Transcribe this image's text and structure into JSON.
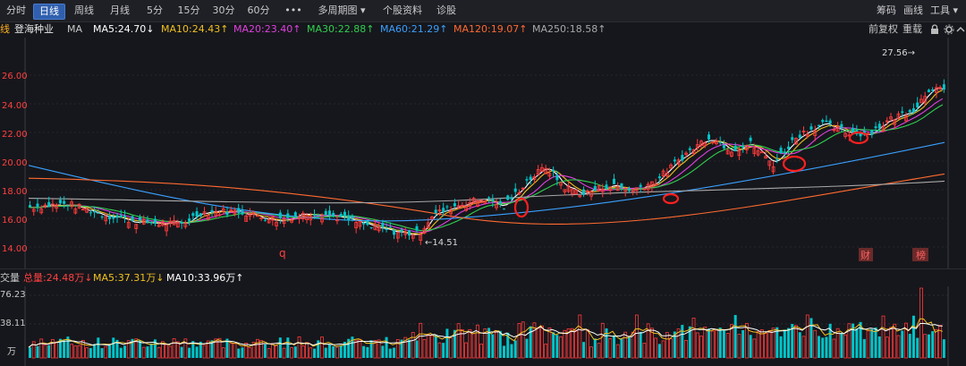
{
  "toolbar": {
    "tabs": [
      "分时",
      "日线",
      "周线",
      "月线",
      "5分",
      "15分",
      "30分",
      "60分",
      "•••",
      "多周期图 ▾",
      "个股资料",
      "诊股"
    ],
    "right": [
      "筹码",
      "画线",
      "工具 ▾"
    ]
  },
  "info": {
    "prefix": "线",
    "stock_name": "登海种业",
    "ma_label": "MA",
    "ma5": "MA5:24.70↓",
    "ma10": "MA10:24.43↑",
    "ma20": "MA20:23.40↑",
    "ma30": "MA30:22.88↑",
    "ma60": "MA60:21.29↑",
    "ma120": "MA120:19.07↑",
    "ma250": "MA250:18.58↑",
    "adjust": "前复权",
    "overlay": "重载"
  },
  "colors": {
    "ma5": "#ffffff",
    "ma10": "#f0c020",
    "ma20": "#e040e0",
    "ma30": "#30d050",
    "ma60": "#3aa0ff",
    "ma120": "#ff6a30",
    "ma250": "#a8a8a8",
    "up": "#ff3b3b",
    "down": "#00c5c9",
    "highlight": "#ff2020"
  },
  "price_axis": {
    "labels": [
      "26.00",
      "24.00",
      "22.00",
      "20.00",
      "18.00",
      "16.00",
      "14.00"
    ]
  },
  "annotations": {
    "high_label": "27.56→",
    "low_label": "←14.51",
    "q_marker": "q",
    "fin_marker": "财",
    "rank_marker": "榜"
  },
  "volume": {
    "title": "交量",
    "total": "总量:24.48万↓",
    "ma5": "MA5:37.31万↓",
    "ma10": "MA10:33.96万↑",
    "axis_labels": [
      "76.23",
      "38.11",
      "万"
    ]
  }
}
